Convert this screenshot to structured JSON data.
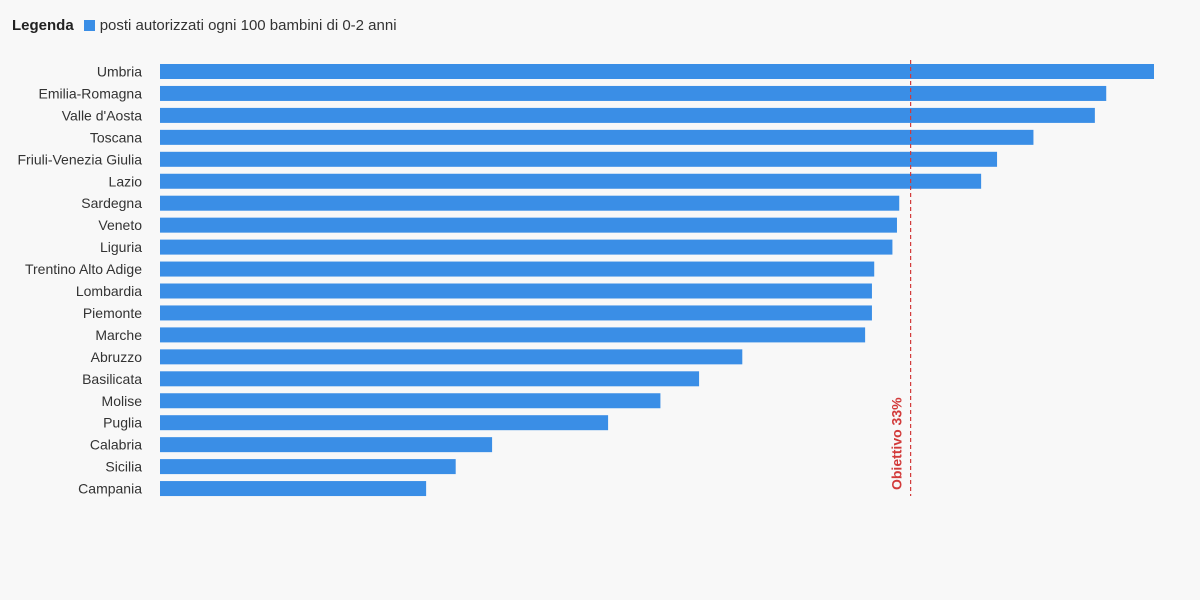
{
  "legend": {
    "title": "Legenda",
    "series_label": "posti autorizzati ogni 100 bambini di 0-2 anni"
  },
  "colors": {
    "bar": "#3a8ee6",
    "target_line": "#d23a3a",
    "background": "#f8f8f8"
  },
  "chart_data": {
    "type": "bar",
    "orientation": "horizontal",
    "grid": false,
    "legend_position": "top-left",
    "xlim": [
      0,
      43.7
    ],
    "categories": [
      "Umbria",
      "Emilia-Romagna",
      "Valle d'Aosta",
      "Toscana",
      "Friuli-Venezia Giulia",
      "Lazio",
      "Sardegna",
      "Veneto",
      "Liguria",
      "Trentino Alto Adige",
      "Lombardia",
      "Piemonte",
      "Marche",
      "Abruzzo",
      "Basilicata",
      "Molise",
      "Puglia",
      "Calabria",
      "Sicilia",
      "Campania"
    ],
    "series": [
      {
        "name": "posti autorizzati ogni 100 bambini di 0-2 anni",
        "values": [
          43.7,
          41.6,
          41.1,
          38.4,
          36.8,
          36.1,
          32.5,
          32.4,
          32.2,
          31.4,
          31.3,
          31.3,
          31.0,
          25.6,
          23.7,
          22.0,
          19.7,
          14.6,
          13.0,
          11.7
        ]
      }
    ],
    "reference_line": {
      "value": 33,
      "label": "Obiettivo 33%"
    }
  }
}
